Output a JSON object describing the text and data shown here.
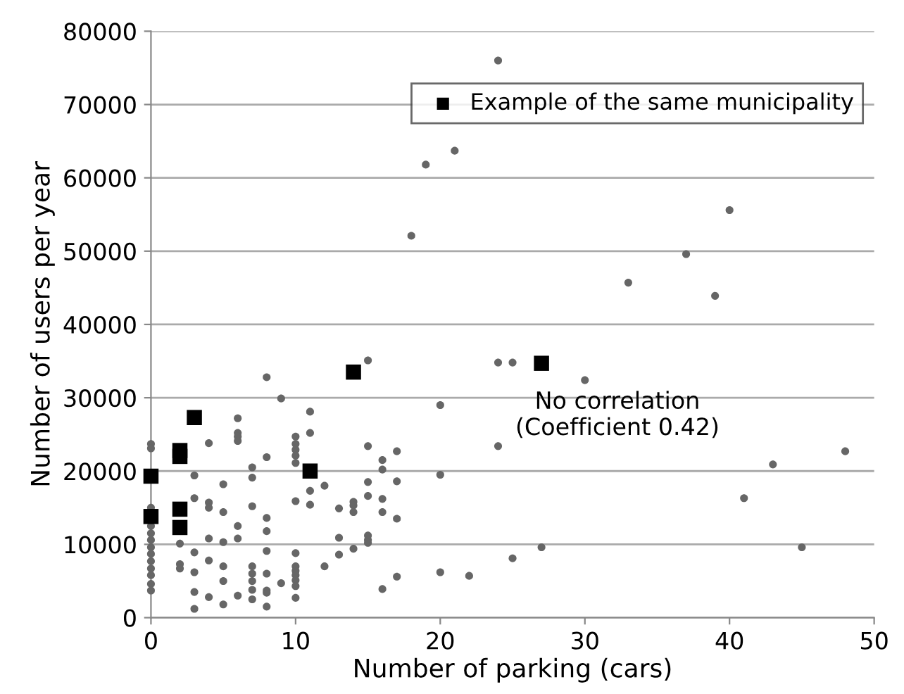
{
  "chart_data": {
    "type": "scatter",
    "xlabel": "Number of parking (cars)",
    "ylabel": "Number of users per year",
    "xlim": [
      0,
      50
    ],
    "ylim": [
      0,
      80000
    ],
    "xticks": [
      0,
      10,
      20,
      30,
      40,
      50
    ],
    "yticks": [
      0,
      10000,
      20000,
      30000,
      40000,
      50000,
      60000,
      70000,
      80000
    ],
    "grid": "y",
    "legend": "top right",
    "annotations": [
      "No correlation\n(Coefficient 0.42)"
    ],
    "series": [
      {
        "color": "#666666",
        "marker": "circle",
        "x": [
          0,
          0,
          0,
          0,
          0,
          0,
          0,
          0,
          0,
          0,
          0,
          0,
          0,
          2,
          2,
          2,
          3,
          3,
          3,
          3,
          3,
          3,
          4,
          4,
          4,
          4,
          4,
          4,
          5,
          5,
          5,
          5,
          5,
          5,
          6,
          6,
          6,
          6,
          6,
          6,
          6,
          7,
          7,
          7,
          7,
          7,
          7,
          7,
          7,
          8,
          8,
          8,
          8,
          8,
          8,
          8,
          8,
          8,
          9,
          9,
          10,
          10,
          10,
          10,
          10,
          10,
          10,
          10,
          10,
          10,
          10,
          10,
          10,
          11,
          11,
          11,
          11,
          12,
          12,
          13,
          13,
          13,
          14,
          14,
          14,
          14,
          15,
          15,
          15,
          15,
          15,
          15,
          15,
          16,
          16,
          16,
          16,
          16,
          17,
          17,
          17,
          17,
          18,
          19,
          20,
          20,
          20,
          21,
          22,
          24,
          24,
          24,
          25,
          25,
          27,
          30,
          33,
          37,
          39,
          40,
          41,
          43,
          45,
          48
        ],
        "values": [
          23700,
          23100,
          15000,
          12500,
          11500,
          10600,
          9600,
          8700,
          7700,
          6700,
          5800,
          4600,
          3700,
          10100,
          7300,
          6700,
          19400,
          16300,
          8900,
          6200,
          3500,
          1200,
          23800,
          15700,
          15000,
          10800,
          7800,
          2800,
          18200,
          14400,
          10300,
          7000,
          5000,
          1800,
          27200,
          25200,
          24700,
          24100,
          12500,
          10800,
          3000,
          20500,
          19100,
          15200,
          7000,
          6000,
          5000,
          3800,
          2500,
          32800,
          21900,
          13600,
          11800,
          9100,
          6000,
          3700,
          3400,
          1500,
          29900,
          4700,
          24700,
          23700,
          22900,
          22100,
          21100,
          15900,
          8800,
          7000,
          6400,
          5800,
          5100,
          4300,
          2700,
          28100,
          25200,
          17300,
          15400,
          18000,
          7000,
          14900,
          10900,
          8600,
          15800,
          15300,
          14400,
          9400,
          35100,
          23400,
          18500,
          16600,
          11200,
          10600,
          10200,
          21500,
          20200,
          16200,
          14400,
          3900,
          18600,
          13500,
          5600,
          22700,
          52100,
          61800,
          29000,
          19500,
          6200,
          63700,
          5700,
          76000,
          34800,
          23400,
          34800,
          8100,
          9600,
          32400,
          45700,
          49600,
          43900,
          55600,
          16300,
          20900,
          9600,
          22700
        ]
      },
      {
        "name": "Example of the same municipality",
        "color": "#000000",
        "marker": "square",
        "x": [
          0,
          0,
          2,
          2,
          2,
          2,
          3,
          11,
          14,
          27
        ],
        "values": [
          19300,
          13800,
          22800,
          22000,
          14800,
          12300,
          27300,
          20000,
          33500,
          34700
        ]
      }
    ]
  }
}
